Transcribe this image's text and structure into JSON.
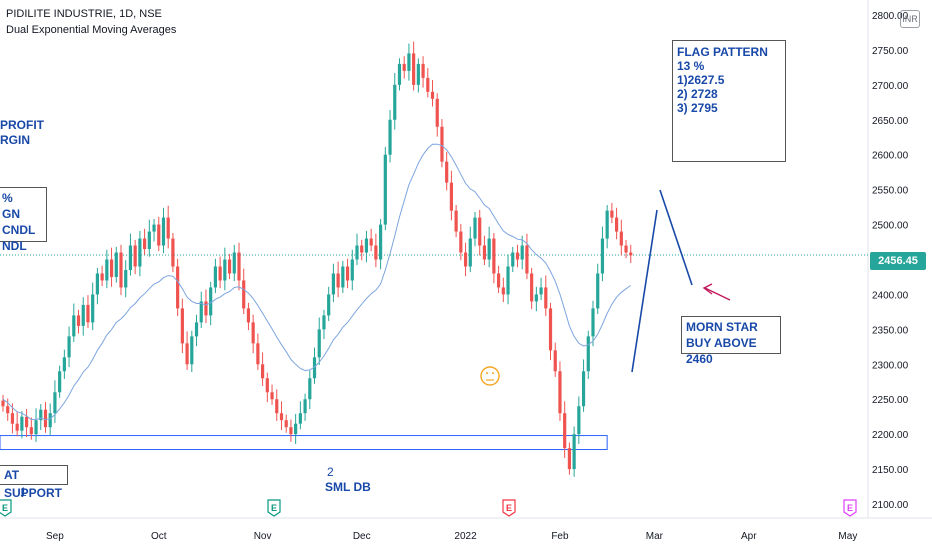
{
  "header": {
    "symbol_line": "PIDILITE INDUSTRIE, 1D, NSE",
    "indicator_line": "Dual Exponential Moving Averages",
    "currency": "INR",
    "last_price": "2456.45"
  },
  "annotations": {
    "flag_pattern": [
      "FLAG PATTERN 13 %",
      "1)2627.5",
      "2) 2728",
      "3) 2795"
    ],
    "left_profit": [
      "PROFIT",
      "RGIN"
    ],
    "left_candle": [
      "%",
      "GN CNDL",
      "NDL"
    ],
    "morning_star": [
      "MORN STAR",
      "BUY ABOVE 2460"
    ],
    "support_label": "AT SUPPORT",
    "sml_db": "SML DB",
    "marker_1": "1",
    "marker_2": "2",
    "event_e": "E"
  },
  "colors": {
    "up": "#26a69a",
    "down": "#ef5350",
    "ema": "#7da5df",
    "annotation": "#1848a8",
    "arrow": "#c2185b",
    "support_box": "#2962ff",
    "event_green": "#089981",
    "event_red": "#f23645",
    "event_magenta": "#e040fb"
  },
  "chart_data": {
    "type": "candlestick",
    "ylim": [
      2080,
      2810
    ],
    "y_ticks": [
      2100,
      2150,
      2200,
      2250,
      2300,
      2350,
      2400,
      2450,
      2500,
      2550,
      2600,
      2650,
      2700,
      2750,
      2800
    ],
    "y_tick_labels": [
      "2100.00",
      "2150.00",
      "2200.00",
      "2250.00",
      "2300.00",
      "2350.00",
      "2400.00",
      "2450.00",
      "2500.00",
      "2550.00",
      "2600.00",
      "2650.00",
      "2700.00",
      "2750.00",
      "2800.00"
    ],
    "x_labels": [
      "Sep",
      "Oct",
      "Nov",
      "Dec",
      "2022",
      "Feb",
      "Mar",
      "Apr",
      "May"
    ],
    "x_label_index": [
      11,
      33,
      55,
      76,
      98,
      118,
      138,
      158,
      179
    ],
    "last_close": 2456.45,
    "flag_targets": [
      2627.5,
      2728,
      2795
    ],
    "support_zone": [
      2178,
      2198
    ],
    "closes": [
      2240,
      2230,
      2215,
      2205,
      2225,
      2210,
      2200,
      2220,
      2235,
      2210,
      2230,
      2260,
      2290,
      2310,
      2340,
      2370,
      2355,
      2385,
      2360,
      2400,
      2430,
      2420,
      2450,
      2425,
      2460,
      2410,
      2435,
      2470,
      2440,
      2480,
      2465,
      2490,
      2500,
      2470,
      2510,
      2480,
      2440,
      2380,
      2330,
      2300,
      2340,
      2360,
      2390,
      2370,
      2410,
      2440,
      2420,
      2450,
      2430,
      2460,
      2420,
      2380,
      2360,
      2330,
      2300,
      2280,
      2260,
      2250,
      2230,
      2220,
      2210,
      2200,
      2215,
      2230,
      2250,
      2280,
      2310,
      2350,
      2370,
      2400,
      2430,
      2410,
      2440,
      2420,
      2450,
      2470,
      2460,
      2480,
      2470,
      2450,
      2500,
      2600,
      2650,
      2700,
      2730,
      2720,
      2745,
      2700,
      2730,
      2710,
      2690,
      2680,
      2640,
      2590,
      2560,
      2520,
      2490,
      2460,
      2440,
      2480,
      2510,
      2470,
      2450,
      2480,
      2430,
      2410,
      2400,
      2440,
      2460,
      2450,
      2470,
      2430,
      2390,
      2400,
      2410,
      2380,
      2320,
      2290,
      2230,
      2180,
      2150,
      2200,
      2240,
      2290,
      2340,
      2380,
      2430,
      2480,
      2520,
      2510,
      2490,
      2470,
      2460,
      2456
    ],
    "ema": [
      2250,
      2245,
      2238,
      2232,
      2230,
      2226,
      2221,
      2221,
      2223,
      2221,
      2222,
      2228,
      2236,
      2245,
      2256,
      2269,
      2278,
      2289,
      2296,
      2307,
      2320,
      2330,
      2342,
      2350,
      2360,
      2365,
      2372,
      2381,
      2387,
      2395,
      2401,
      2408,
      2415,
      2418,
      2424,
      2427,
      2426,
      2419,
      2408,
      2396,
      2390,
      2387,
      2387,
      2385,
      2388,
      2393,
      2396,
      2401,
      2404,
      2410,
      2411,
      2407,
      2402,
      2394,
      2384,
      2373,
      2362,
      2351,
      2339,
      2328,
      2318,
      2307,
      2300,
      2294,
      2291,
      2292,
      2296,
      2303,
      2312,
      2323,
      2335,
      2343,
      2353,
      2360,
      2369,
      2378,
      2386,
      2394,
      2401,
      2406,
      2415,
      2435,
      2458,
      2484,
      2511,
      2534,
      2557,
      2572,
      2588,
      2600,
      2609,
      2615,
      2615,
      2613,
      2607,
      2597,
      2585,
      2572,
      2559,
      2551,
      2547,
      2538,
      2528,
      2523,
      2512,
      2501,
      2491,
      2486,
      2483,
      2479,
      2478,
      2473,
      2464,
      2457,
      2452,
      2445,
      2433,
      2419,
      2400,
      2378,
      2355,
      2340,
      2330,
      2326,
      2328,
      2333,
      2343,
      2357,
      2373,
      2386,
      2396,
      2403,
      2408,
      2413
    ]
  }
}
